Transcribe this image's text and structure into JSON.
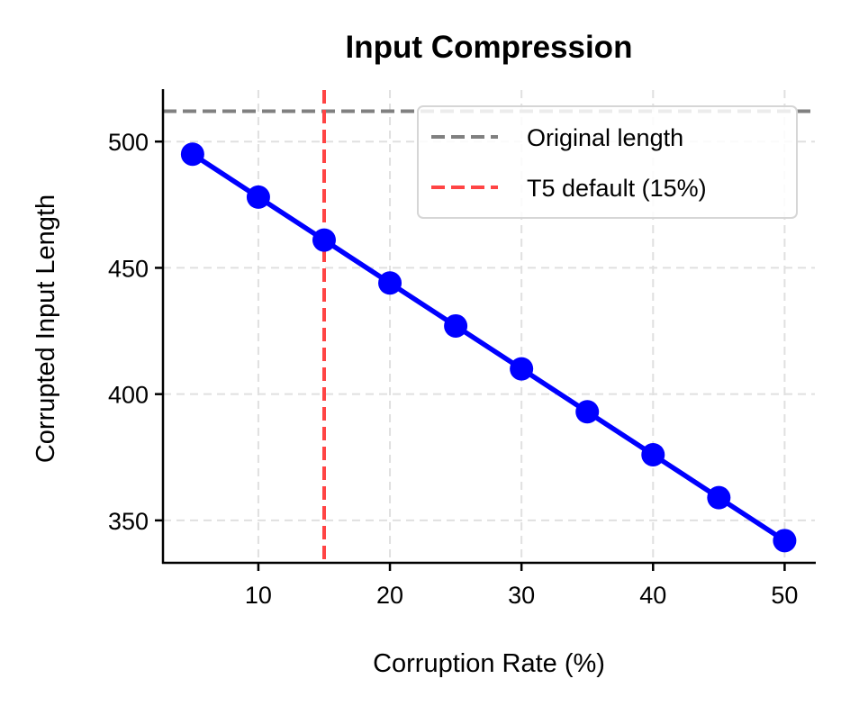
{
  "chart_data": {
    "type": "line",
    "title": "Input Compression",
    "xlabel": "Corruption Rate (%)",
    "ylabel": "Corrupted Input Length",
    "x": [
      5,
      10,
      15,
      20,
      25,
      30,
      35,
      40,
      45,
      50
    ],
    "series": [
      {
        "name": "Corrupted input length",
        "color": "#0000ff",
        "marker": "circle",
        "values": [
          495,
          478,
          461,
          444,
          427,
          410,
          393,
          376,
          359,
          342
        ]
      }
    ],
    "reference_lines": [
      {
        "name": "Original length",
        "orientation": "horizontal",
        "value": 512,
        "color": "#808080",
        "style": "dashed"
      },
      {
        "name": "T5 default (15%)",
        "orientation": "vertical",
        "value": 15,
        "color": "#ff4444",
        "style": "dashed"
      }
    ],
    "xticks": [
      10,
      20,
      30,
      40,
      50
    ],
    "yticks": [
      350,
      400,
      450,
      500
    ],
    "xlim": [
      2.75,
      52.3
    ],
    "ylim": [
      333.2,
      520.4
    ],
    "grid": true,
    "legend_position": "upper right"
  },
  "labels": {
    "title": "Input Compression",
    "xlabel": "Corruption Rate (%)",
    "ylabel": "Corrupted Input Length",
    "xticks": [
      "10",
      "20",
      "30",
      "40",
      "50"
    ],
    "yticks": [
      "350",
      "400",
      "450",
      "500"
    ],
    "legend": [
      "Original length",
      "T5 default (15%)"
    ]
  }
}
